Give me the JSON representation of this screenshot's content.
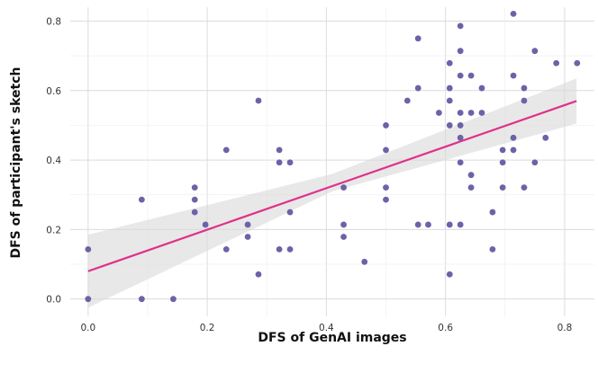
{
  "chart_data": {
    "type": "scatter",
    "title": "",
    "xlabel": "DFS of GenAI images",
    "ylabel": "DFS of participant's sketch",
    "xlim": [
      -0.03,
      0.85
    ],
    "ylim": [
      -0.05,
      0.84
    ],
    "x_ticks": [
      0.0,
      0.2,
      0.4,
      0.6,
      0.8
    ],
    "x_tick_labels": [
      "0.0",
      "0.2",
      "0.4",
      "0.6",
      "0.8"
    ],
    "y_ticks": [
      0.0,
      0.2,
      0.4,
      0.6,
      0.8
    ],
    "y_tick_labels": [
      "0.0",
      "0.2",
      "0.4",
      "0.6",
      "0.8"
    ],
    "grid": true,
    "point_color": "#6b63a8",
    "line_color": "#e0308a",
    "band_color": "#d9d9d9",
    "points": [
      {
        "x": 0.0,
        "y": 0.143
      },
      {
        "x": 0.0,
        "y": 0.0
      },
      {
        "x": 0.09,
        "y": 0.286
      },
      {
        "x": 0.09,
        "y": 0.0
      },
      {
        "x": 0.143,
        "y": 0.0
      },
      {
        "x": 0.179,
        "y": 0.321
      },
      {
        "x": 0.179,
        "y": 0.286
      },
      {
        "x": 0.179,
        "y": 0.25
      },
      {
        "x": 0.197,
        "y": 0.214
      },
      {
        "x": 0.232,
        "y": 0.429
      },
      {
        "x": 0.232,
        "y": 0.143
      },
      {
        "x": 0.268,
        "y": 0.214
      },
      {
        "x": 0.268,
        "y": 0.179
      },
      {
        "x": 0.286,
        "y": 0.571
      },
      {
        "x": 0.286,
        "y": 0.071
      },
      {
        "x": 0.321,
        "y": 0.429
      },
      {
        "x": 0.321,
        "y": 0.393
      },
      {
        "x": 0.321,
        "y": 0.143
      },
      {
        "x": 0.339,
        "y": 0.393
      },
      {
        "x": 0.339,
        "y": 0.25
      },
      {
        "x": 0.339,
        "y": 0.143
      },
      {
        "x": 0.429,
        "y": 0.321
      },
      {
        "x": 0.429,
        "y": 0.214
      },
      {
        "x": 0.429,
        "y": 0.179
      },
      {
        "x": 0.464,
        "y": 0.107
      },
      {
        "x": 0.5,
        "y": 0.5
      },
      {
        "x": 0.5,
        "y": 0.429
      },
      {
        "x": 0.5,
        "y": 0.321
      },
      {
        "x": 0.5,
        "y": 0.286
      },
      {
        "x": 0.536,
        "y": 0.571
      },
      {
        "x": 0.554,
        "y": 0.75
      },
      {
        "x": 0.554,
        "y": 0.607
      },
      {
        "x": 0.554,
        "y": 0.214
      },
      {
        "x": 0.571,
        "y": 0.214
      },
      {
        "x": 0.589,
        "y": 0.536
      },
      {
        "x": 0.607,
        "y": 0.679
      },
      {
        "x": 0.607,
        "y": 0.607
      },
      {
        "x": 0.607,
        "y": 0.571
      },
      {
        "x": 0.607,
        "y": 0.5
      },
      {
        "x": 0.607,
        "y": 0.214
      },
      {
        "x": 0.607,
        "y": 0.071
      },
      {
        "x": 0.625,
        "y": 0.786
      },
      {
        "x": 0.625,
        "y": 0.714
      },
      {
        "x": 0.625,
        "y": 0.643
      },
      {
        "x": 0.625,
        "y": 0.536
      },
      {
        "x": 0.625,
        "y": 0.5
      },
      {
        "x": 0.625,
        "y": 0.464
      },
      {
        "x": 0.625,
        "y": 0.393
      },
      {
        "x": 0.625,
        "y": 0.214
      },
      {
        "x": 0.643,
        "y": 0.643
      },
      {
        "x": 0.643,
        "y": 0.536
      },
      {
        "x": 0.643,
        "y": 0.357
      },
      {
        "x": 0.643,
        "y": 0.321
      },
      {
        "x": 0.661,
        "y": 0.607
      },
      {
        "x": 0.661,
        "y": 0.536
      },
      {
        "x": 0.679,
        "y": 0.25
      },
      {
        "x": 0.679,
        "y": 0.143
      },
      {
        "x": 0.696,
        "y": 0.429
      },
      {
        "x": 0.696,
        "y": 0.393
      },
      {
        "x": 0.696,
        "y": 0.321
      },
      {
        "x": 0.714,
        "y": 0.821
      },
      {
        "x": 0.714,
        "y": 0.643
      },
      {
        "x": 0.714,
        "y": 0.464
      },
      {
        "x": 0.714,
        "y": 0.429
      },
      {
        "x": 0.732,
        "y": 0.607
      },
      {
        "x": 0.732,
        "y": 0.571
      },
      {
        "x": 0.732,
        "y": 0.321
      },
      {
        "x": 0.75,
        "y": 0.714
      },
      {
        "x": 0.75,
        "y": 0.393
      },
      {
        "x": 0.768,
        "y": 0.464
      },
      {
        "x": 0.786,
        "y": 0.679
      },
      {
        "x": 0.821,
        "y": 0.679
      }
    ],
    "fit_line": {
      "x": [
        0.0,
        0.82
      ],
      "y": [
        0.08,
        0.57
      ]
    },
    "confidence_band": {
      "x": [
        0.0,
        0.41,
        0.82
      ],
      "upper": [
        0.185,
        0.36,
        0.635
      ],
      "lower": [
        -0.025,
        0.31,
        0.505
      ]
    }
  }
}
